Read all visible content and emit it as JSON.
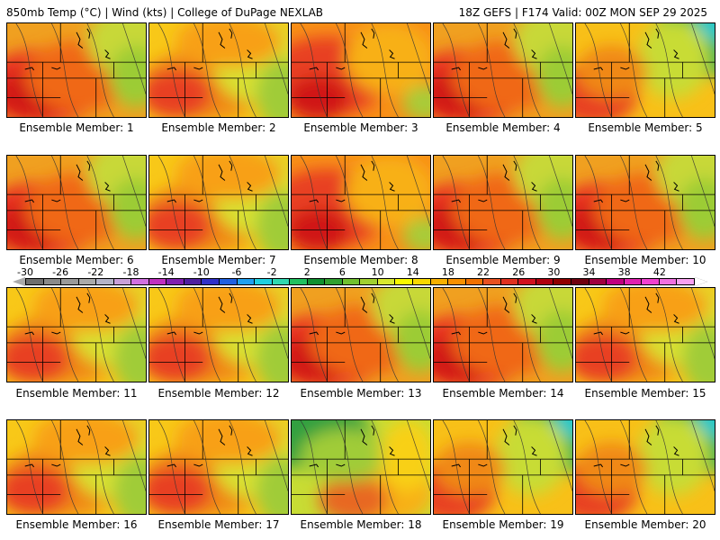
{
  "header": {
    "left": "850mb Temp (°C) | Wind (kts) | College of DuPage NEXLAB",
    "right": "18Z GEFS | F174 Valid: 00Z MON SEP 29 2025"
  },
  "members": [
    {
      "label": "Ensemble Member: 1",
      "style": "hot"
    },
    {
      "label": "Ensemble Member: 2",
      "style": "warm"
    },
    {
      "label": "Ensemble Member: 3",
      "style": "hotflat"
    },
    {
      "label": "Ensemble Member: 4",
      "style": "hot"
    },
    {
      "label": "Ensemble Member: 5",
      "style": "coolne"
    },
    {
      "label": "Ensemble Member: 6",
      "style": "hot"
    },
    {
      "label": "Ensemble Member: 7",
      "style": "warm"
    },
    {
      "label": "Ensemble Member: 8",
      "style": "hotflat"
    },
    {
      "label": "Ensemble Member: 9",
      "style": "hot"
    },
    {
      "label": "Ensemble Member: 10",
      "style": "hot"
    },
    {
      "label": "Ensemble Member: 11",
      "style": "warm"
    },
    {
      "label": "Ensemble Member: 12",
      "style": "warm"
    },
    {
      "label": "Ensemble Member: 13",
      "style": "hot"
    },
    {
      "label": "Ensemble Member: 14",
      "style": "hot"
    },
    {
      "label": "Ensemble Member: 15",
      "style": "warm"
    },
    {
      "label": "Ensemble Member: 16",
      "style": "warm"
    },
    {
      "label": "Ensemble Member: 17",
      "style": "warm"
    },
    {
      "label": "Ensemble Member: 18",
      "style": "coolnw"
    },
    {
      "label": "Ensemble Member: 19",
      "style": "coolne"
    },
    {
      "label": "Ensemble Member: 20",
      "style": "coolne"
    }
  ],
  "colorbar": {
    "tick_labels": [
      "-30",
      "-26",
      "-22",
      "-18",
      "-14",
      "-10",
      "-6",
      "-2",
      "2",
      "6",
      "10",
      "14",
      "18",
      "22",
      "26",
      "30",
      "34",
      "38",
      "42"
    ],
    "colors": [
      "#6e6e6e",
      "#8a8a8a",
      "#9a9a9a",
      "#aaaaaa",
      "#b4b4c8",
      "#c8a0d8",
      "#d070e0",
      "#c030c0",
      "#8020b0",
      "#5020a0",
      "#3030c8",
      "#2060e0",
      "#20a0f0",
      "#20d0e0",
      "#30d8b0",
      "#20c060",
      "#109030",
      "#30a030",
      "#70c030",
      "#a0d030",
      "#d8e830",
      "#f8f800",
      "#f8d800",
      "#f8b000",
      "#f89000",
      "#f07000",
      "#e85020",
      "#e03020",
      "#d01020",
      "#b00010",
      "#900000",
      "#700010",
      "#a00040",
      "#c00080",
      "#e020b0",
      "#f040d0",
      "#f070e0",
      "#f8a0f0"
    ]
  }
}
